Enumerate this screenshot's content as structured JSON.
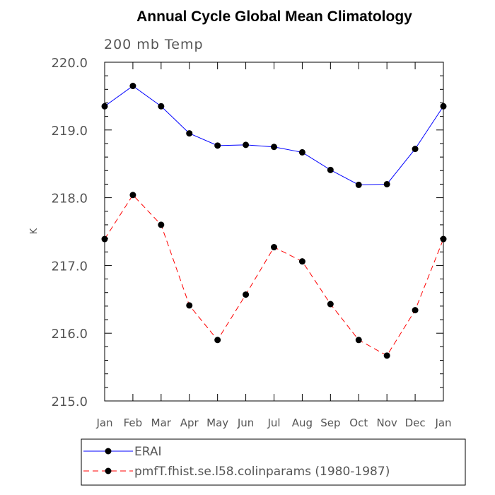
{
  "chart_data": {
    "type": "line",
    "title": "Annual Cycle Global Mean Climatology",
    "subtitle": "200 mb Temp",
    "xlabel": "",
    "ylabel": "K",
    "categories": [
      "Jan",
      "Feb",
      "Mar",
      "Apr",
      "May",
      "Jun",
      "Jul",
      "Aug",
      "Sep",
      "Oct",
      "Nov",
      "Dec",
      "Jan"
    ],
    "ylim": [
      215.0,
      220.0
    ],
    "yticks": [
      "215.0",
      "216.0",
      "217.0",
      "218.0",
      "219.0",
      "220.0"
    ],
    "grid": false,
    "legend_position": "bottom",
    "series": [
      {
        "name": "ERAI",
        "color": "#0000ff",
        "dash": "solid",
        "values": [
          219.35,
          219.65,
          219.35,
          218.95,
          218.77,
          218.78,
          218.75,
          218.67,
          218.41,
          218.19,
          218.2,
          218.72,
          219.35
        ]
      },
      {
        "name": "pmfT.fhist.se.l58.colinparams (1980-1987)",
        "color": "#ff0000",
        "dash": "dashed",
        "values": [
          217.39,
          218.04,
          217.6,
          216.41,
          215.9,
          216.57,
          217.27,
          217.06,
          216.43,
          215.9,
          215.67,
          216.34,
          217.39
        ]
      }
    ]
  }
}
